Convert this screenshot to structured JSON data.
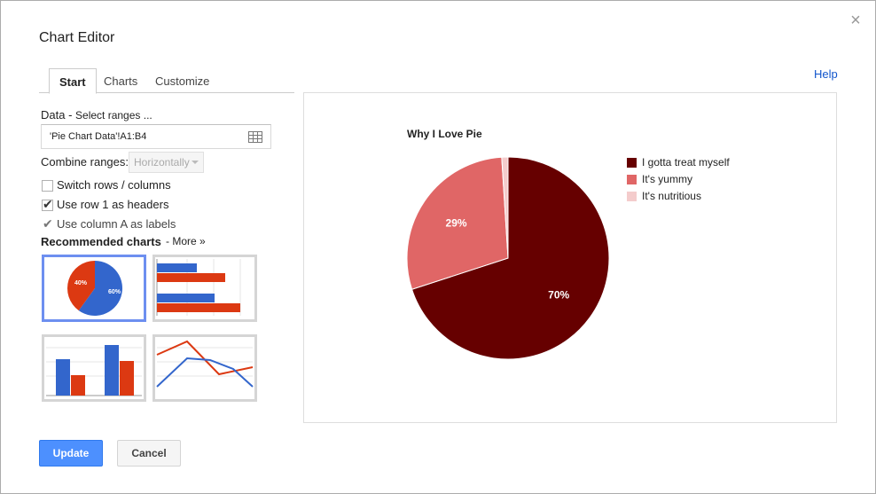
{
  "dialog": {
    "title": "Chart Editor",
    "help_label": "Help",
    "close_glyph": "×"
  },
  "tabs": [
    {
      "label": "Start",
      "active": true
    },
    {
      "label": "Charts",
      "active": false
    },
    {
      "label": "Customize",
      "active": false
    }
  ],
  "data_section": {
    "label": "Data",
    "separator": " - ",
    "select_ranges_link": "Select ranges ...",
    "range_value": "'Pie Chart Data'!A1:B4",
    "combine_label": "Combine ranges:",
    "combine_value": "Horizontally"
  },
  "options": {
    "switch_rows": {
      "label": "Switch rows / columns",
      "checked": false
    },
    "row1_headers": {
      "label": "Use row 1 as headers",
      "checked": true
    },
    "colA_labels": {
      "label": "Use column A as labels",
      "checked": true,
      "disabled": true
    }
  },
  "recommended": {
    "title": "Recommended charts",
    "more_link": "- More »",
    "pie_thumb_labels": [
      "40%",
      "60%"
    ]
  },
  "preview": {
    "chart_data": {
      "type": "pie",
      "title": "Why I Love Pie",
      "legend_position": "right",
      "slices": [
        {
          "label": "I gotta treat myself",
          "value": 70,
          "display": "70%",
          "color": "#660000"
        },
        {
          "label": "It's yummy",
          "value": 29,
          "display": "29%",
          "color": "#e06666"
        },
        {
          "label": "It's nutritious",
          "value": 1,
          "display": "",
          "color": "#f4cccc"
        }
      ]
    }
  },
  "buttons": {
    "update": "Update",
    "cancel": "Cancel"
  },
  "colors": {
    "accent_blue": "#4d90fe",
    "link_blue": "#1155cc",
    "thumb_blue": "#3366cc",
    "thumb_red": "#dc3912"
  },
  "icons": {
    "range_picker": "grid-icon",
    "close": "close-icon"
  }
}
